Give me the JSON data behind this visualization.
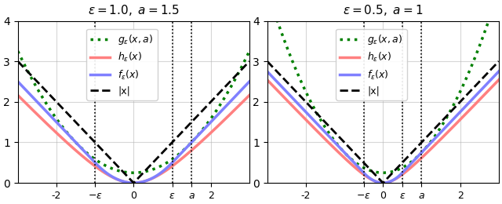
{
  "plots": [
    {
      "epsilon": 1.0,
      "a": 1.5,
      "title": "$\\varepsilon = 1.0,\\ a = 1.5$",
      "xlim": [
        -3,
        3
      ],
      "ylim": [
        0,
        4
      ]
    },
    {
      "epsilon": 0.5,
      "a": 1.0,
      "title": "$\\varepsilon = 0.5,\\ a = 1$",
      "xlim": [
        -3,
        3
      ],
      "ylim": [
        0,
        4
      ]
    }
  ],
  "colors": {
    "abs": "black",
    "h": "#FF8080",
    "f": "#8080FF",
    "g": "green"
  },
  "legend_labels": [
    "|x|",
    "$h_{\\varepsilon}(x)$",
    "$f_{\\varepsilon}(x)$",
    "$g_{\\varepsilon}(x, a)$"
  ],
  "figsize": [
    6.4,
    2.6
  ],
  "dpi": 100
}
